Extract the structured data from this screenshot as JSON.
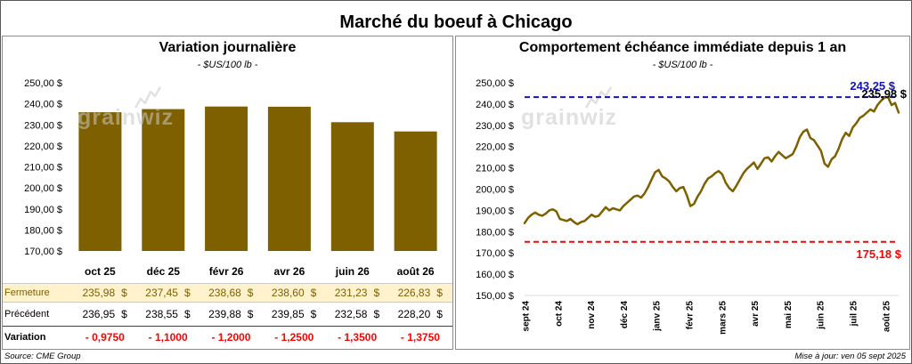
{
  "title": "Marché du boeuf à Chicago",
  "watermark": "grainwiz",
  "colors": {
    "bar": "#7f6000",
    "line": "#7f6000",
    "fermeture_bg": "#fff2cc",
    "fermeture_text": "#7f6000",
    "variation_text": "#ff0000",
    "watermark": "#c9c9c9",
    "last_value_label": "#000000"
  },
  "table": {
    "rows": [
      {
        "label": "Fermeture",
        "values": [
          "235,98",
          "237,45",
          "238,68",
          "238,60",
          "231,23",
          "226,83"
        ],
        "suffix": "$"
      },
      {
        "label": "Précédent",
        "values": [
          "236,95",
          "238,55",
          "239,88",
          "239,85",
          "232,58",
          "228,20"
        ],
        "suffix": "$"
      },
      {
        "label": "Variation",
        "values": [
          "- 0,9750",
          "- 1,1000",
          "- 1,2000",
          "- 1,2500",
          "- 1,3500",
          "- 1,3750"
        ]
      }
    ]
  },
  "footer": {
    "source": "Source: CME Group",
    "updated": "Mise à jour: ven 05 sept 2025"
  },
  "chart_data": [
    {
      "type": "bar",
      "title": "Variation journalière",
      "subtitle": "- $US/100 lb -",
      "categories": [
        "oct 25",
        "déc 25",
        "févr 26",
        "avr 26",
        "juin 26",
        "août 26"
      ],
      "values": [
        235.98,
        237.45,
        238.68,
        238.6,
        231.23,
        226.83
      ],
      "ylim": [
        170,
        250
      ],
      "y_ticks": [
        250,
        240,
        230,
        220,
        210,
        200,
        190,
        180,
        170
      ],
      "y_tick_labels": [
        "250,00 $",
        "240,00 $",
        "230,00 $",
        "220,00 $",
        "210,00 $",
        "200,00 $",
        "190,00 $",
        "180,00 $",
        "170,00 $"
      ],
      "grid": false
    },
    {
      "type": "line",
      "title": "Comportement échéance immédiate depuis 1 an",
      "subtitle": "- $US/100 lb -",
      "x_tick_labels": [
        "sept 24",
        "oct 24",
        "nov 24",
        "déc 24",
        "janv 25",
        "févr 25",
        "mars 25",
        "avr 25",
        "mai 25",
        "juin 25",
        "juil 25",
        "août 25"
      ],
      "ylim": [
        150,
        250
      ],
      "y_ticks": [
        250,
        240,
        230,
        220,
        210,
        200,
        190,
        180,
        170,
        160,
        150
      ],
      "y_tick_labels": [
        "250,00 $",
        "240,00 $",
        "230,00 $",
        "220,00 $",
        "210,00 $",
        "200,00 $",
        "190,00 $",
        "180,00 $",
        "170,00 $",
        "160,00 $",
        "150,00 $"
      ],
      "series": [
        {
          "color": "#7f6000",
          "values": [
            184.0,
            186.5,
            188.0,
            189.0,
            188.0,
            187.5,
            188.5,
            190.0,
            190.5,
            189.5,
            186.0,
            185.5,
            185.0,
            186.0,
            184.5,
            183.5,
            184.5,
            185.0,
            186.5,
            188.0,
            187.0,
            187.5,
            189.5,
            191.5,
            190.0,
            191.0,
            190.5,
            190.0,
            192.0,
            193.5,
            195.0,
            196.5,
            197.0,
            196.0,
            198.0,
            201.0,
            204.5,
            208.0,
            209.0,
            206.0,
            205.0,
            203.5,
            201.0,
            199.0,
            200.5,
            201.0,
            197.0,
            192.0,
            193.0,
            196.5,
            199.0,
            202.5,
            205.0,
            206.0,
            207.5,
            208.5,
            207.0,
            203.0,
            200.5,
            199.0,
            201.5,
            204.5,
            207.5,
            209.5,
            211.0,
            212.5,
            209.5,
            212.0,
            214.5,
            215.0,
            213.0,
            215.5,
            217.5,
            216.0,
            214.5,
            215.5,
            216.5,
            220.0,
            224.5,
            227.0,
            228.0,
            224.0,
            223.0,
            220.5,
            218.0,
            212.0,
            210.5,
            214.0,
            215.5,
            219.0,
            223.5,
            226.5,
            225.0,
            229.0,
            231.0,
            233.5,
            234.5,
            236.0,
            237.5,
            236.5,
            239.5,
            241.5,
            243.0,
            243.25,
            239.5,
            240.5,
            235.98
          ]
        }
      ],
      "reference_lines": [
        {
          "value": 243.25,
          "label": "243,25 $",
          "color": "#1414b4"
        },
        {
          "value": 175.18,
          "label": "175,18 $",
          "color": "#ff0000"
        }
      ],
      "last_value_label": "235,98 $",
      "grid": false
    }
  ]
}
